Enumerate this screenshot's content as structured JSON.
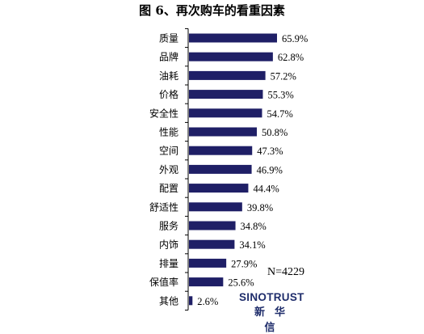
{
  "title": "图 6、再次购车的看重因素",
  "sample_size": "N=4229",
  "logo": {
    "en": "SINOTRUST",
    "cn": "新华信"
  },
  "colors": {
    "bar": "#1f1f66",
    "axis": "#000000"
  },
  "chart_data": {
    "type": "bar",
    "orientation": "horizontal",
    "categories": [
      "质量",
      "品牌",
      "油耗",
      "价格",
      "安全性",
      "性能",
      "空间",
      "外观",
      "配置",
      "舒适性",
      "服务",
      "内饰",
      "排量",
      "保值率",
      "其他"
    ],
    "values": [
      65.9,
      62.8,
      57.2,
      55.3,
      54.7,
      50.8,
      47.3,
      46.9,
      44.4,
      39.8,
      34.8,
      34.1,
      27.9,
      25.6,
      2.6
    ],
    "value_labels": [
      "65.9%",
      "62.8%",
      "57.2%",
      "55.3%",
      "54.7%",
      "50.8%",
      "47.3%",
      "46.9%",
      "44.4%",
      "39.8%",
      "34.8%",
      "34.1%",
      "27.9%",
      "25.6%",
      "2.6%"
    ],
    "unit": "%",
    "title": "图 6、再次购车的看重因素",
    "xlim": [
      0,
      100
    ],
    "grid": false,
    "legend": "none"
  }
}
